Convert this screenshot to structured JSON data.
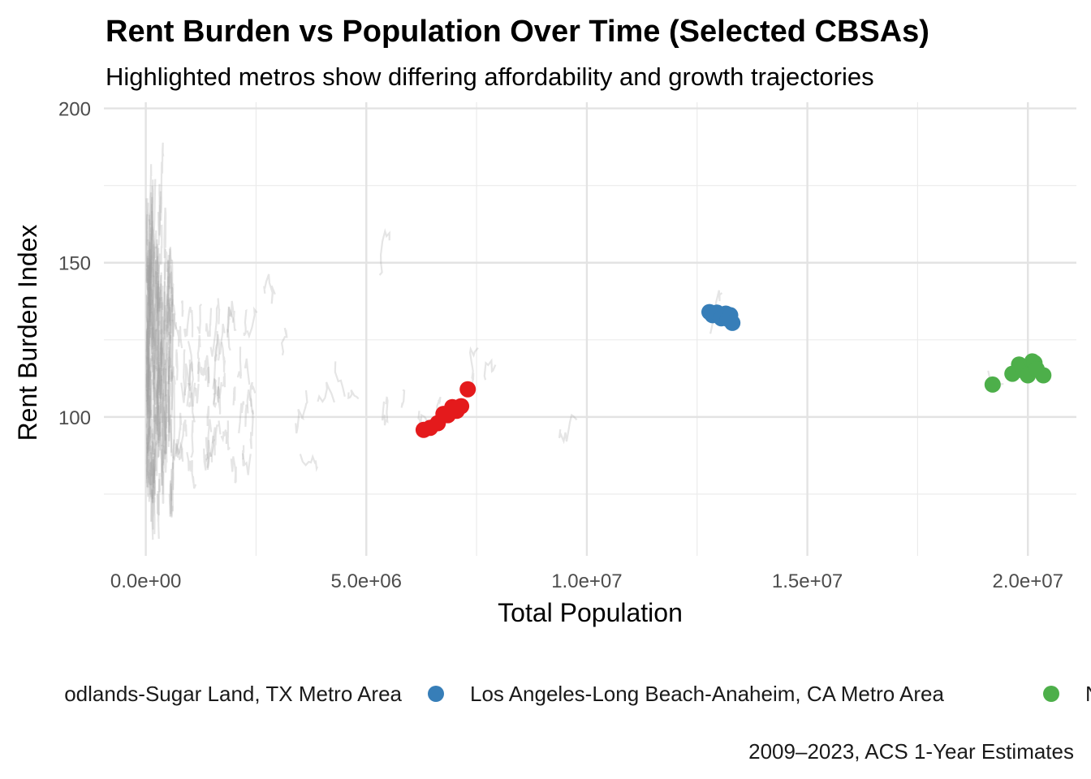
{
  "chart_data": {
    "type": "scatter",
    "title": "Rent Burden vs Population Over Time (Selected CBSAs)",
    "subtitle": "Highlighted metros show differing affordability and growth trajectories",
    "xlabel": "Total Population",
    "ylabel": "Rent Burden Index",
    "caption": "2009–2023, ACS 1-Year Estimates",
    "xlim": [
      -950000,
      21100000
    ],
    "ylim": [
      55,
      202
    ],
    "x_ticks": [
      0,
      5000000,
      10000000,
      15000000,
      20000000
    ],
    "x_tick_labels": [
      "0.0e+00",
      "5.0e+06",
      "1.0e+07",
      "1.5e+07",
      "2.0e+07"
    ],
    "y_ticks": [
      100,
      150,
      200
    ],
    "y_tick_labels": [
      "100",
      "150",
      "200"
    ],
    "grid": true,
    "legend_position": "bottom",
    "series": [
      {
        "name": "Houston-The Woodlands-Sugar Land, TX Metro Area",
        "legend_label": "odlands-Sugar Land, TX Metro Area",
        "color": "#e41a1c",
        "points": [
          [
            6300000,
            95.8
          ],
          [
            6450000,
            96.5
          ],
          [
            6620000,
            98.0
          ],
          [
            6750000,
            101.0
          ],
          [
            6850000,
            100.6
          ],
          [
            6950000,
            103.2
          ],
          [
            7050000,
            102.0
          ],
          [
            7150000,
            103.5
          ],
          [
            7300000,
            109.0
          ]
        ]
      },
      {
        "name": "Los Angeles-Long Beach-Anaheim, CA Metro Area",
        "legend_label": "Los Angeles-Long Beach-Anaheim, CA Metro Area",
        "color": "#377eb8",
        "points": [
          [
            12780000,
            134.0
          ],
          [
            12850000,
            133.0
          ],
          [
            12950000,
            133.8
          ],
          [
            13050000,
            132.0
          ],
          [
            13150000,
            133.5
          ],
          [
            13200000,
            131.8
          ],
          [
            13250000,
            133.0
          ],
          [
            13300000,
            130.5
          ]
        ]
      },
      {
        "name": "New York-Newark-Jersey City, NY-NJ-PA Metro Area",
        "legend_label": "N",
        "color": "#4daf4a",
        "points": [
          [
            19200000,
            110.5
          ],
          [
            19650000,
            114.0
          ],
          [
            19800000,
            117.0
          ],
          [
            19900000,
            115.0
          ],
          [
            20000000,
            113.5
          ],
          [
            20100000,
            118.0
          ],
          [
            20150000,
            117.5
          ],
          [
            20200000,
            115.5
          ],
          [
            20350000,
            113.5
          ]
        ]
      }
    ],
    "background_series_color": "#a0a0a0"
  }
}
